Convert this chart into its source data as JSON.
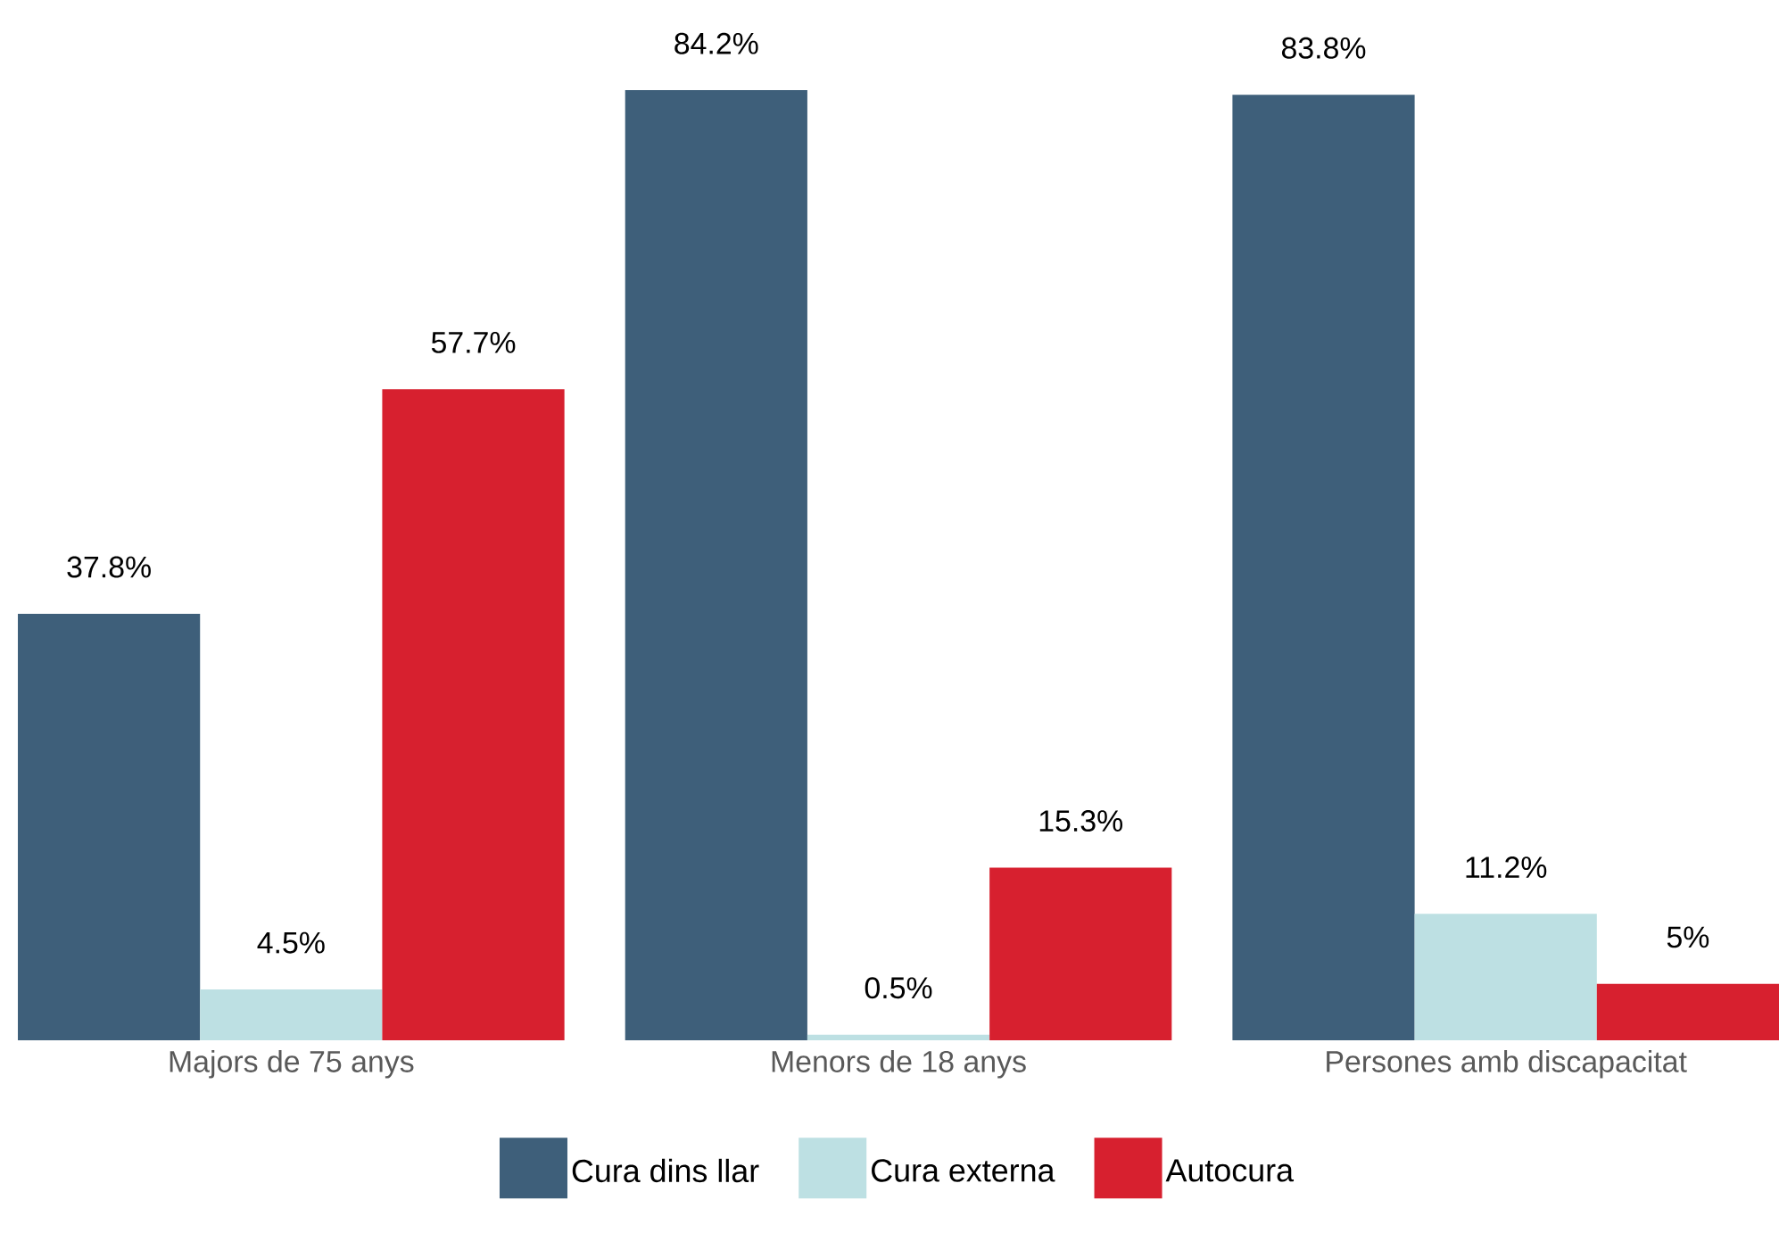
{
  "chart_data": {
    "type": "bar",
    "categories": [
      "Majors de 75 anys",
      "Menors de 18 anys",
      "Persones amb discapacitat"
    ],
    "series": [
      {
        "name": "Cura dins llar",
        "color": "#3e5f7a",
        "values": [
          37.8,
          84.2,
          83.8
        ],
        "value_labels": [
          "37.8%",
          "84.2%",
          "83.8%"
        ]
      },
      {
        "name": "Cura externa",
        "color": "#bde0e3",
        "values": [
          4.5,
          0.5,
          11.2
        ],
        "value_labels": [
          "4.5%",
          "0.5%",
          "11.2%"
        ]
      },
      {
        "name": "Autocura",
        "color": "#d7202f",
        "values": [
          57.7,
          15.3,
          5
        ],
        "value_labels": [
          "57.7%",
          "15.3%",
          "5%"
        ]
      }
    ],
    "legend": "bottom"
  }
}
